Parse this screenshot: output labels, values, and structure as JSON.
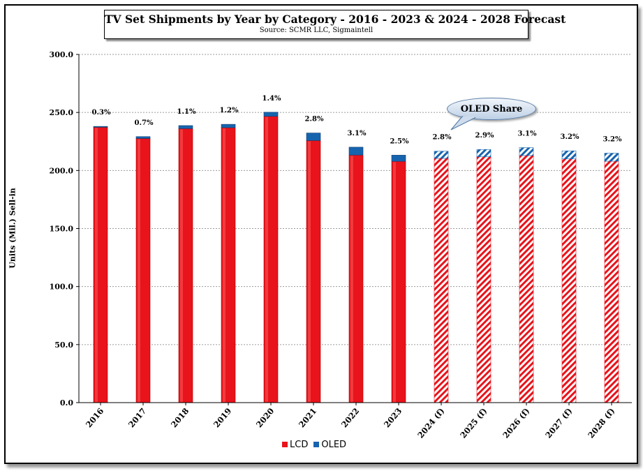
{
  "chart_data": {
    "type": "bar",
    "stacked": true,
    "title": "TV Set Shipments by Year by Category - 2016 - 2023 & 2024 - 2028 Forecast",
    "subtitle": "Source: SCMR LLC, Sigmaintell",
    "ylabel": "Units (Mil.) Sell-in",
    "ylim": [
      0,
      300
    ],
    "yticks": [
      "0.0",
      "50.0",
      "100.0",
      "150.0",
      "200.0",
      "250.0",
      "300.0"
    ],
    "grid": true,
    "legend_position": "bottom",
    "categories": [
      "2016",
      "2017",
      "2018",
      "2019",
      "2020",
      "2021",
      "2022",
      "2023",
      "2024 (f)",
      "2025 (f)",
      "2026 (f)",
      "2027 (f)",
      "2028 (f)"
    ],
    "forecast_categories": [
      "2024 (f)",
      "2025 (f)",
      "2026 (f)",
      "2027 (f)",
      "2028 (f)"
    ],
    "series": [
      {
        "name": "LCD",
        "color": "#e8131b",
        "values": [
          237.3,
          227.6,
          236.1,
          236.9,
          246.7,
          225.8,
          213.3,
          207.9,
          210.5,
          211.8,
          212.9,
          210.0,
          208.0
        ]
      },
      {
        "name": "OLED",
        "color": "#1764ae",
        "values": [
          0.7,
          1.6,
          2.6,
          2.9,
          3.5,
          6.5,
          6.8,
          5.3,
          6.1,
          6.3,
          6.8,
          6.9,
          6.9
        ]
      }
    ],
    "data_labels": [
      "0.3%",
      "0.7%",
      "1.1%",
      "1.2%",
      "1.4%",
      "2.8%",
      "3.1%",
      "2.5%",
      "2.8%",
      "2.9%",
      "3.1%",
      "3.2%",
      "3.2%"
    ],
    "annotation": "OLED Share"
  }
}
